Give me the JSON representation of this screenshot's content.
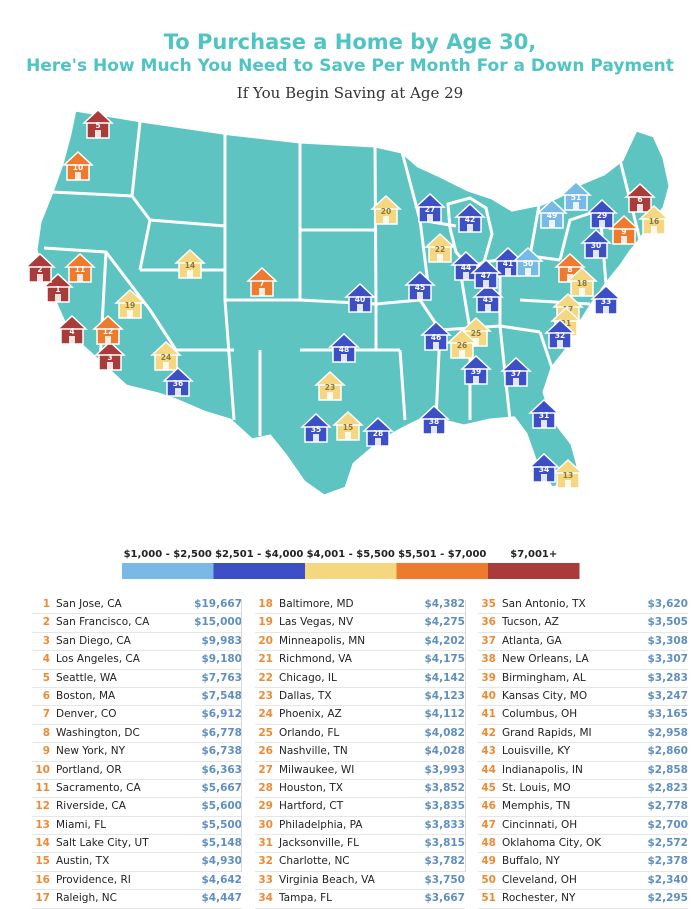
{
  "title": {
    "line1": "To Purchase a Home by Age 30,",
    "line2": "Here's How Much You Need to Save Per Month For a Down Payment",
    "line3": "If You Begin Saving at Age 29"
  },
  "colors": {
    "map_fill": "#5ec4c2",
    "map_border": "#ffffff",
    "tier1": "#79b9e6",
    "tier2": "#3c4fc5",
    "tier3": "#f5d782",
    "tier4": "#ee7a2d",
    "tier5": "#a93b3b",
    "rank_text": "#ef8a34",
    "value_text": "#5f8fc0"
  },
  "chart_data": {
    "type": "table",
    "legend": [
      {
        "label": "$1,000 - $2,500",
        "color": "#79b9e6"
      },
      {
        "label": "$2,501 - $4,000",
        "color": "#3c4fc5"
      },
      {
        "label": "$4,001 - $5,500",
        "color": "#f5d782"
      },
      {
        "label": "$5,501 - $7,000",
        "color": "#ee7a2d"
      },
      {
        "label": "$7,001+",
        "color": "#a93b3b"
      }
    ],
    "rows": [
      {
        "rank": "1",
        "city": "San Jose, CA",
        "value": "$19,667"
      },
      {
        "rank": "2",
        "city": "San Francisco, CA",
        "value": "$15,000"
      },
      {
        "rank": "3",
        "city": "San Diego, CA",
        "value": "$9,983"
      },
      {
        "rank": "4",
        "city": "Los Angeles, CA",
        "value": "$9,180"
      },
      {
        "rank": "5",
        "city": "Seattle, WA",
        "value": "$7,763"
      },
      {
        "rank": "6",
        "city": "Boston, MA",
        "value": "$7,548"
      },
      {
        "rank": "7",
        "city": "Denver, CO",
        "value": "$6,912"
      },
      {
        "rank": "8",
        "city": "Washington, DC",
        "value": "$6,778"
      },
      {
        "rank": "9",
        "city": "New York, NY",
        "value": "$6,738"
      },
      {
        "rank": "10",
        "city": "Portland, OR",
        "value": "$6,363"
      },
      {
        "rank": "11",
        "city": "Sacramento, CA",
        "value": "$5,667"
      },
      {
        "rank": "12",
        "city": "Riverside, CA",
        "value": "$5,600"
      },
      {
        "rank": "13",
        "city": "Miami, FL",
        "value": "$5,500"
      },
      {
        "rank": "14",
        "city": "Salt Lake City, UT",
        "value": "$5,148"
      },
      {
        "rank": "15",
        "city": "Austin, TX",
        "value": "$4,930"
      },
      {
        "rank": "16",
        "city": "Providence, RI",
        "value": "$4,642"
      },
      {
        "rank": "17",
        "city": "Raleigh, NC",
        "value": "$4,447"
      },
      {
        "rank": "18",
        "city": "Baltimore, MD",
        "value": "$4,382"
      },
      {
        "rank": "19",
        "city": "Las Vegas, NV",
        "value": "$4,275"
      },
      {
        "rank": "20",
        "city": "Minneapolis, MN",
        "value": "$4,202"
      },
      {
        "rank": "21",
        "city": "Richmond, VA",
        "value": "$4,175"
      },
      {
        "rank": "22",
        "city": "Chicago, IL",
        "value": "$4,142"
      },
      {
        "rank": "23",
        "city": "Dallas, TX",
        "value": "$4,123"
      },
      {
        "rank": "24",
        "city": "Phoenix, AZ",
        "value": "$4,112"
      },
      {
        "rank": "25",
        "city": "Orlando, FL",
        "value": "$4,082"
      },
      {
        "rank": "26",
        "city": "Nashville, TN",
        "value": "$4,028"
      },
      {
        "rank": "27",
        "city": "Milwaukee, WI",
        "value": "$3,993"
      },
      {
        "rank": "28",
        "city": "Houston, TX",
        "value": "$3,852"
      },
      {
        "rank": "29",
        "city": "Hartford, CT",
        "value": "$3,835"
      },
      {
        "rank": "30",
        "city": "Philadelphia, PA",
        "value": "$3,833"
      },
      {
        "rank": "31",
        "city": "Jacksonville, FL",
        "value": "$3,815"
      },
      {
        "rank": "32",
        "city": "Charlotte, NC",
        "value": "$3,782"
      },
      {
        "rank": "33",
        "city": "Virginia Beach, VA",
        "value": "$3,750"
      },
      {
        "rank": "34",
        "city": "Tampa, FL",
        "value": "$3,667"
      },
      {
        "rank": "35",
        "city": "San Antonio, TX",
        "value": "$3,620"
      },
      {
        "rank": "36",
        "city": "Tucson, AZ",
        "value": "$3,505"
      },
      {
        "rank": "37",
        "city": "Atlanta, GA",
        "value": "$3,308"
      },
      {
        "rank": "38",
        "city": "New Orleans, LA",
        "value": "$3,307"
      },
      {
        "rank": "39",
        "city": "Birmingham, AL",
        "value": "$3,283"
      },
      {
        "rank": "40",
        "city": "Kansas City, MO",
        "value": "$3,247"
      },
      {
        "rank": "41",
        "city": "Columbus, OH",
        "value": "$3,165"
      },
      {
        "rank": "42",
        "city": "Grand Rapids, MI",
        "value": "$2,958"
      },
      {
        "rank": "43",
        "city": "Louisville, KY",
        "value": "$2,860"
      },
      {
        "rank": "44",
        "city": "Indianapolis, IN",
        "value": "$2,858"
      },
      {
        "rank": "45",
        "city": "St. Louis, MO",
        "value": "$2,823"
      },
      {
        "rank": "46",
        "city": "Memphis, TN",
        "value": "$2,778"
      },
      {
        "rank": "47",
        "city": "Cincinnati, OH",
        "value": "$2,700"
      },
      {
        "rank": "48",
        "city": "Oklahoma City, OK",
        "value": "$2,572"
      },
      {
        "rank": "49",
        "city": "Buffalo, NY",
        "value": "$2,378"
      },
      {
        "rank": "50",
        "city": "Cleveland, OH",
        "value": "$2,340"
      },
      {
        "rank": "51",
        "city": "Rochester, NY",
        "value": "$2,295"
      }
    ]
  }
}
